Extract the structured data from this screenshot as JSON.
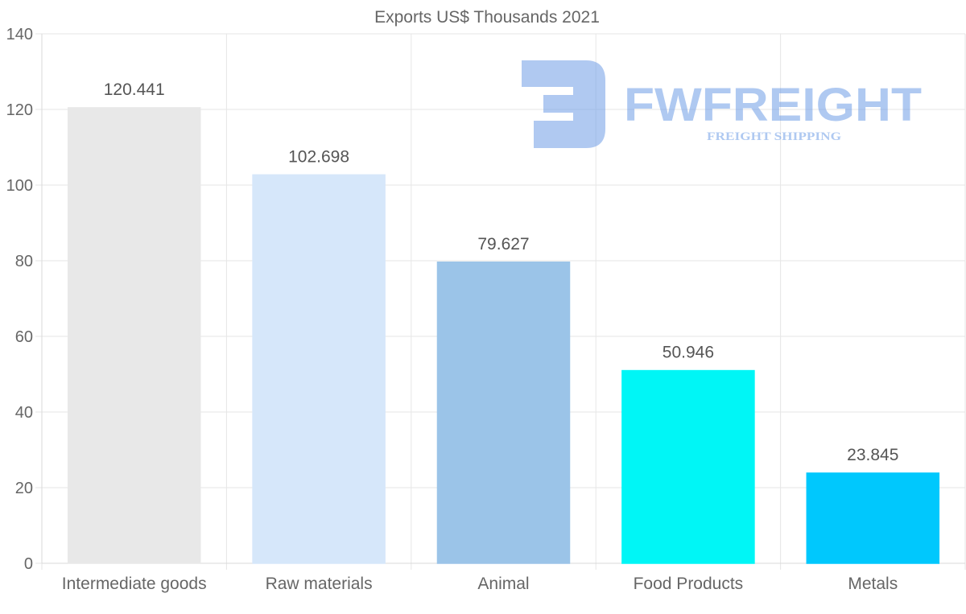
{
  "chart_data": {
    "type": "bar",
    "title": "Exports US$ Thousands 2021",
    "xlabel": "",
    "ylabel": "",
    "ylim": [
      0,
      140
    ],
    "yticks": [
      0,
      20,
      40,
      60,
      80,
      100,
      120,
      140
    ],
    "grid": true,
    "legend": "none",
    "categories": [
      "Intermediate goods",
      "Raw materials",
      "Animal",
      "Food Products",
      "Metals"
    ],
    "values": [
      120.441,
      102.698,
      79.627,
      50.946,
      23.845
    ],
    "value_labels": [
      "120.441",
      "102.698",
      "79.627",
      "50.946",
      "23.845"
    ],
    "colors": [
      "#e8e8e8",
      "#d6e7fa",
      "#9bc4e8",
      "#00f6f6",
      "#00c8fd"
    ]
  },
  "watermark": {
    "brand": "FWFREIGHT",
    "tagline": "FREIGHT SHIPPING",
    "color": "#6f9de6"
  }
}
